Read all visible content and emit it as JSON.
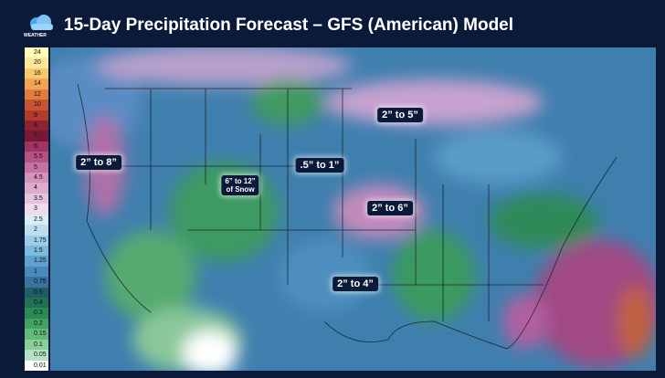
{
  "header": {
    "logo": "WEATHER",
    "title": "15-Day Precipitation Forecast – GFS (American) Model"
  },
  "legend": {
    "items": [
      {
        "label": "24",
        "color": "#fffbb8"
      },
      {
        "label": "20",
        "color": "#fce79a"
      },
      {
        "label": "16",
        "color": "#f7c96e"
      },
      {
        "label": "14",
        "color": "#efa555"
      },
      {
        "label": "12",
        "color": "#e07d3c"
      },
      {
        "label": "10",
        "color": "#c95432"
      },
      {
        "label": "9",
        "color": "#b23a2a"
      },
      {
        "label": "8",
        "color": "#8c2232"
      },
      {
        "label": "7",
        "color": "#741a34"
      },
      {
        "label": "6",
        "color": "#a23464"
      },
      {
        "label": "5.5",
        "color": "#b45284"
      },
      {
        "label": "5",
        "color": "#c472a4"
      },
      {
        "label": "4.5",
        "color": "#d292bc"
      },
      {
        "label": "4",
        "color": "#dcacca"
      },
      {
        "label": "3.5",
        "color": "#e4c4dc"
      },
      {
        "label": "3",
        "color": "#ecdcec"
      },
      {
        "label": "2.5",
        "color": "#dcecf4"
      },
      {
        "label": "2",
        "color": "#bcdef0"
      },
      {
        "label": "1.75",
        "color": "#9ccee8"
      },
      {
        "label": "1.5",
        "color": "#7cbade"
      },
      {
        "label": "1.25",
        "color": "#5ea2ce"
      },
      {
        "label": "1",
        "color": "#4a8aba"
      },
      {
        "label": "0.75",
        "color": "#3a72a2"
      },
      {
        "label": "0.5",
        "color": "#1f5e66"
      },
      {
        "label": "0.4",
        "color": "#1f7254"
      },
      {
        "label": "0.3",
        "color": "#2a8a54"
      },
      {
        "label": "0.2",
        "color": "#42a264"
      },
      {
        "label": "0.15",
        "color": "#62ba7a"
      },
      {
        "label": "0.1",
        "color": "#8ace9a"
      },
      {
        "label": "0.05",
        "color": "#b4e2c4"
      },
      {
        "label": "0.01",
        "color": "#ffffff"
      }
    ]
  },
  "annotations": [
    {
      "text": "2” to 5”"
    },
    {
      "text": "2” to 8”"
    },
    {
      "text": ".5” to 1”"
    },
    {
      "text": "6” to 12”",
      "subtext": "of Snow"
    },
    {
      "text": "2” to 6”"
    },
    {
      "text": "2” to 4”"
    }
  ]
}
